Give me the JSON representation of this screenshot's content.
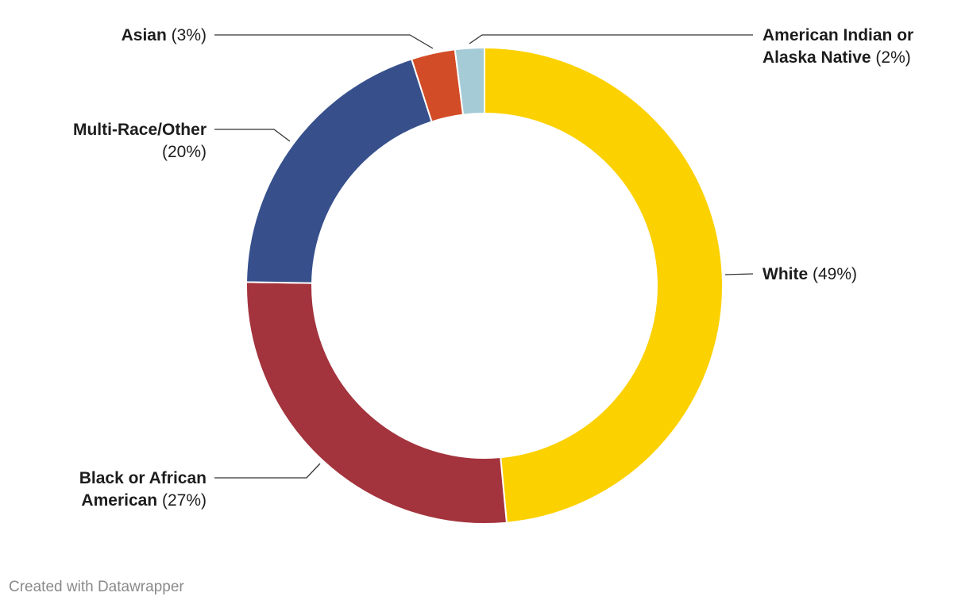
{
  "chart_data": {
    "type": "pie",
    "variant": "donut",
    "title": "",
    "categories": [
      "White",
      "Black or African American",
      "Multi-Race/Other",
      "Asian",
      "American Indian or Alaska Native"
    ],
    "values": [
      49,
      27,
      20,
      3,
      2
    ],
    "unit": "%",
    "colors": [
      "#fcd100",
      "#a3333d",
      "#37508c",
      "#d24c27",
      "#a5ccd6"
    ],
    "labels": [
      {
        "lines": [
          {
            "name": "White",
            "value": "(49%)"
          }
        ]
      },
      {
        "lines": [
          {
            "name": "Black or African",
            "value": ""
          },
          {
            "name": "American",
            "value": "(27%)"
          }
        ]
      },
      {
        "lines": [
          {
            "name": "Multi-Race/Other",
            "value": ""
          },
          {
            "name": "",
            "value": "(20%)"
          }
        ]
      },
      {
        "lines": [
          {
            "name": "Asian",
            "value": "(3%)"
          }
        ]
      },
      {
        "lines": [
          {
            "name": "American Indian or",
            "value": ""
          },
          {
            "name": "Alaska Native",
            "value": "(2%)"
          }
        ]
      }
    ]
  },
  "footer": {
    "credit": "Created with Datawrapper"
  }
}
